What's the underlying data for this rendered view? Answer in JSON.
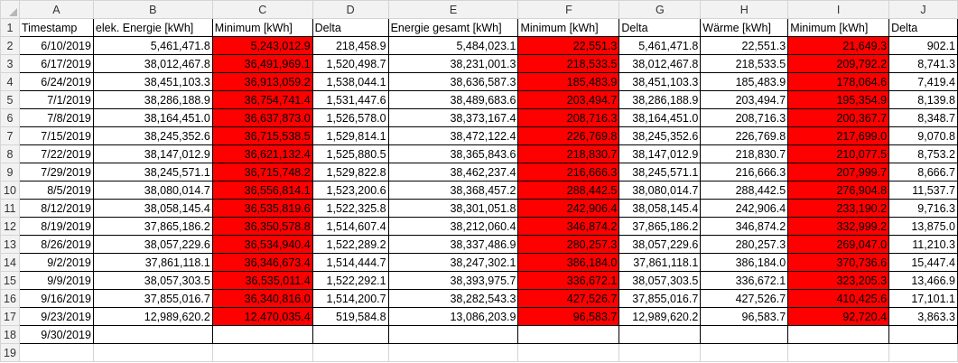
{
  "columns": [
    "A",
    "B",
    "C",
    "D",
    "E",
    "F",
    "G",
    "H",
    "I",
    "J"
  ],
  "rows": [
    "1",
    "2",
    "3",
    "4",
    "5",
    "6",
    "7",
    "8",
    "9",
    "10",
    "11",
    "12",
    "13",
    "14",
    "15",
    "16",
    "17",
    "18",
    "19"
  ],
  "header_row": [
    "Timestamp",
    "elek.  Energie [kWh]",
    "Minimum [kWh]",
    "Delta",
    "Energie gesamt [kWh]",
    "Minimum [kWh]",
    "Delta",
    "Wärme [kWh]",
    "Minimum [kWh]",
    "Delta"
  ],
  "data_rows": [
    [
      "6/10/2019",
      "5,461,471.8",
      "5,243,012.9",
      "218,458.9",
      "5,484,023.1",
      "22,551.3",
      "5,461,471.8",
      "22,551.3",
      "21,649.3",
      "902.1"
    ],
    [
      "6/17/2019",
      "38,012,467.8",
      "36,491,969.1",
      "1,520,498.7",
      "38,231,001.3",
      "218,533.5",
      "38,012,467.8",
      "218,533.5",
      "209,792.2",
      "8,741.3"
    ],
    [
      "6/24/2019",
      "38,451,103.3",
      "36,913,059.2",
      "1,538,044.1",
      "38,636,587.3",
      "185,483.9",
      "38,451,103.3",
      "185,483.9",
      "178,064.6",
      "7,419.4"
    ],
    [
      "7/1/2019",
      "38,286,188.9",
      "36,754,741.4",
      "1,531,447.6",
      "38,489,683.6",
      "203,494.7",
      "38,286,188.9",
      "203,494.7",
      "195,354.9",
      "8,139.8"
    ],
    [
      "7/8/2019",
      "38,164,451.0",
      "36,637,873.0",
      "1,526,578.0",
      "38,373,167.4",
      "208,716.3",
      "38,164,451.0",
      "208,716.3",
      "200,367.7",
      "8,348.7"
    ],
    [
      "7/15/2019",
      "38,245,352.6",
      "36,715,538.5",
      "1,529,814.1",
      "38,472,122.4",
      "226,769.8",
      "38,245,352.6",
      "226,769.8",
      "217,699.0",
      "9,070.8"
    ],
    [
      "7/22/2019",
      "38,147,012.9",
      "36,621,132.4",
      "1,525,880.5",
      "38,365,843.6",
      "218,830.7",
      "38,147,012.9",
      "218,830.7",
      "210,077.5",
      "8,753.2"
    ],
    [
      "7/29/2019",
      "38,245,571.1",
      "36,715,748.2",
      "1,529,822.8",
      "38,462,237.4",
      "216,666.3",
      "38,245,571.1",
      "216,666.3",
      "207,999.7",
      "8,666.7"
    ],
    [
      "8/5/2019",
      "38,080,014.7",
      "36,556,814.1",
      "1,523,200.6",
      "38,368,457.2",
      "288,442.5",
      "38,080,014.7",
      "288,442.5",
      "276,904.8",
      "11,537.7"
    ],
    [
      "8/12/2019",
      "38,058,145.4",
      "36,535,819.6",
      "1,522,325.8",
      "38,301,051.8",
      "242,906.4",
      "38,058,145.4",
      "242,906.4",
      "233,190.2",
      "9,716.3"
    ],
    [
      "8/19/2019",
      "37,865,186.2",
      "36,350,578.8",
      "1,514,607.4",
      "38,212,060.4",
      "346,874.2",
      "37,865,186.2",
      "346,874.2",
      "332,999.2",
      "13,875.0"
    ],
    [
      "8/26/2019",
      "38,057,229.6",
      "36,534,940.4",
      "1,522,289.2",
      "38,337,486.9",
      "280,257.3",
      "38,057,229.6",
      "280,257.3",
      "269,047.0",
      "11,210.3"
    ],
    [
      "9/2/2019",
      "37,861,118.1",
      "36,346,673.4",
      "1,514,444.7",
      "38,247,302.1",
      "386,184.0",
      "37,861,118.1",
      "386,184.0",
      "370,736.6",
      "15,447.4"
    ],
    [
      "9/9/2019",
      "38,057,303.5",
      "36,535,011.4",
      "1,522,292.1",
      "38,393,975.7",
      "336,672.1",
      "38,057,303.5",
      "336,672.1",
      "323,205.3",
      "13,466.9"
    ],
    [
      "9/16/2019",
      "37,855,016.7",
      "36,340,816.0",
      "1,514,200.7",
      "38,282,543.3",
      "427,526.7",
      "37,855,016.7",
      "427,526.7",
      "410,425.6",
      "17,101.1"
    ],
    [
      "9/23/2019",
      "12,989,620.2",
      "12,470,035.4",
      "519,584.8",
      "13,086,203.9",
      "96,583.7",
      "12,989,620.2",
      "96,583.7",
      "92,720.4",
      "3,863.3"
    ]
  ],
  "last_timestamp": "9/30/2019",
  "colors": {
    "highlight": "#ff0000",
    "header_bg": "#f2f2f2",
    "gridline": "#d4d4d4",
    "border": "#000000"
  }
}
